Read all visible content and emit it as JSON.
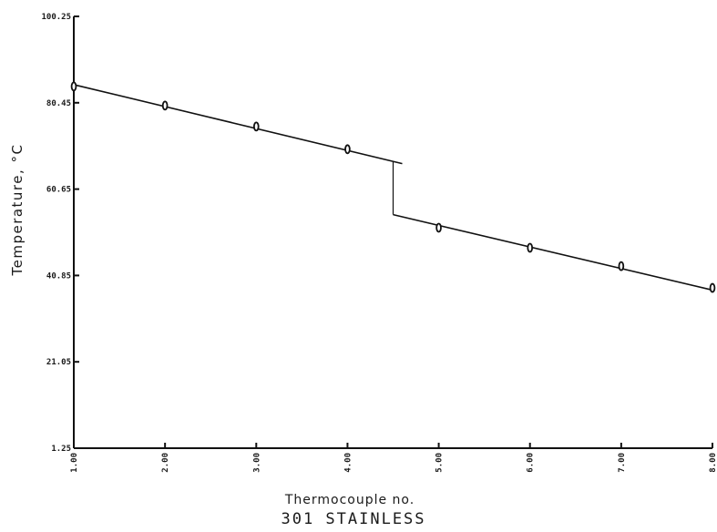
{
  "chart_data": {
    "type": "line",
    "title": "301 STAINLESS",
    "xlabel": "Thermocouple no.",
    "ylabel": "Temperature, °C",
    "xlim": [
      1,
      8
    ],
    "ylim": [
      1.25,
      100.25
    ],
    "x_ticks": [
      "1.00",
      "2.00",
      "3.00",
      "4.00",
      "5.00",
      "6.00",
      "7.00",
      "8.00"
    ],
    "y_ticks": [
      {
        "value": 100.25,
        "label": "100.25"
      },
      {
        "value": 80.45,
        "label": "80.45"
      },
      {
        "value": 60.65,
        "label": "60.65"
      },
      {
        "value": 40.85,
        "label": "40.85"
      },
      {
        "value": 21.05,
        "label": "21.05"
      },
      {
        "value": 1.25,
        "label": "1.25"
      }
    ],
    "grid": false,
    "series": [
      {
        "x": [
          1,
          2,
          3,
          4
        ],
        "y": [
          84.2,
          79.8,
          75.0,
          69.8
        ]
      },
      {
        "x": [
          5,
          6,
          7,
          8
        ],
        "y": [
          51.8,
          47.2,
          43.0,
          38.0
        ]
      }
    ],
    "fit_lines": [
      {
        "x": [
          1,
          4.6
        ],
        "y": [
          84.6,
          66.5
        ]
      },
      {
        "x": [
          4.5,
          8
        ],
        "y": [
          54.8,
          37.5
        ]
      }
    ],
    "step": {
      "x": 4.5,
      "y": [
        67.0,
        54.8
      ]
    }
  }
}
